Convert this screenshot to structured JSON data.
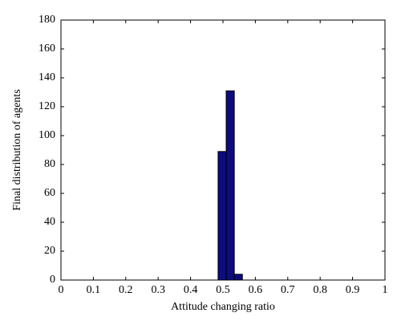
{
  "chart_data": {
    "type": "histogram",
    "xlabel": "Attitude changing ratio",
    "ylabel": "Final distribution of agents",
    "bins": [
      0.485,
      0.51,
      0.535,
      0.56
    ],
    "values": [
      89,
      131,
      4
    ],
    "color": "#0c0c80",
    "edgecolor": "#000000",
    "xlim": [
      0,
      1
    ],
    "xticks": [
      0,
      0.1,
      0.2,
      0.3,
      0.4,
      0.5,
      0.6,
      0.7,
      0.8,
      0.9,
      1
    ],
    "ylim": [
      0,
      180
    ],
    "yticks": [
      0,
      20,
      40,
      60,
      80,
      100,
      120,
      140,
      160,
      180
    ],
    "grid": false
  }
}
